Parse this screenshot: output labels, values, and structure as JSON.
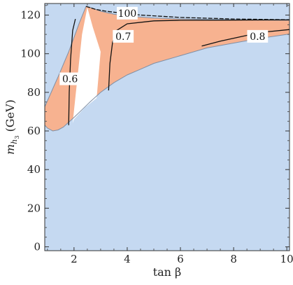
{
  "chart_data": {
    "type": "area",
    "xlabel": "tan β",
    "ylabel_main": "m",
    "ylabel_sub": "h",
    "ylabel_subsub": "3",
    "ylabel_unit": "(GeV)",
    "xlim": [
      0.9,
      10.1
    ],
    "ylim": [
      -2,
      126
    ],
    "x_ticks": [
      2,
      4,
      6,
      8,
      10
    ],
    "y_ticks": [
      0,
      20,
      40,
      60,
      80,
      100,
      120
    ],
    "grid": false,
    "colors": {
      "background_region": "#c5d9f1",
      "allowed_region": "#f7b290",
      "excluded_gap": "#ffffff",
      "contour": "#111111"
    },
    "regions": {
      "lower_boundary": [
        [
          0.9,
          63
        ],
        [
          1.0,
          61.5
        ],
        [
          1.2,
          60
        ],
        [
          1.4,
          60.5
        ],
        [
          1.6,
          62
        ],
        [
          1.8,
          64.5
        ],
        [
          2.0,
          67
        ],
        [
          2.3,
          71
        ],
        [
          2.6,
          75
        ],
        [
          3.0,
          80
        ],
        [
          3.5,
          85
        ],
        [
          4.0,
          89
        ],
        [
          4.5,
          92
        ],
        [
          5.0,
          95
        ],
        [
          6.0,
          99
        ],
        [
          7.0,
          103
        ],
        [
          8.0,
          105.5
        ],
        [
          9.0,
          108
        ],
        [
          10.0,
          110
        ],
        [
          10.1,
          110.2
        ]
      ],
      "upper_boundary": [
        [
          0.9,
          72.5
        ],
        [
          1.4,
          88
        ],
        [
          1.8,
          101
        ],
        [
          2.2,
          116
        ],
        [
          2.45,
          124.5
        ],
        [
          2.6,
          124
        ],
        [
          3.0,
          122
        ],
        [
          3.5,
          120.5
        ],
        [
          4.0,
          119.5
        ],
        [
          5.0,
          118.5
        ],
        [
          6.0,
          118
        ],
        [
          8.0,
          117.5
        ],
        [
          10.1,
          117.3
        ]
      ],
      "white_gap": [
        [
          1.95,
          64
        ],
        [
          2.3,
          110
        ],
        [
          2.5,
          124
        ],
        [
          2.7,
          114
        ],
        [
          3.0,
          101
        ],
        [
          2.85,
          77
        ],
        [
          2.4,
          72
        ],
        [
          2.0,
          66
        ]
      ]
    },
    "contours": [
      {
        "label": "0.6",
        "points": [
          [
            1.8,
            63
          ],
          [
            1.82,
            80
          ],
          [
            1.87,
            97
          ],
          [
            1.95,
            112
          ],
          [
            2.05,
            118
          ]
        ],
        "label_at": [
          1.85,
          87
        ]
      },
      {
        "label": "0.7",
        "points": [
          [
            3.3,
            81
          ],
          [
            3.35,
            95
          ],
          [
            3.45,
            106
          ],
          [
            3.6,
            112
          ],
          [
            4.0,
            115.5
          ],
          [
            5.0,
            117
          ],
          [
            6.0,
            117.3
          ],
          [
            8.0,
            117.4
          ],
          [
            10.1,
            117.5
          ]
        ],
        "label_at": [
          3.85,
          109
        ]
      },
      {
        "label": "0.8",
        "points": [
          [
            6.8,
            104
          ],
          [
            7.5,
            106.5
          ],
          [
            8.0,
            108
          ],
          [
            8.5,
            109.5
          ],
          [
            9.0,
            111
          ],
          [
            10.1,
            112.5
          ]
        ],
        "label_at": [
          8.9,
          109
        ]
      },
      {
        "label": "100",
        "points": [
          [
            2.45,
            124.5
          ],
          [
            2.8,
            123
          ],
          [
            3.2,
            122
          ],
          [
            3.8,
            121
          ],
          [
            4.5,
            120
          ],
          [
            6.0,
            118.8
          ],
          [
            8.0,
            118
          ],
          [
            10.1,
            117.6
          ]
        ],
        "dashed": true,
        "label_at": [
          4.0,
          121
        ]
      }
    ]
  }
}
